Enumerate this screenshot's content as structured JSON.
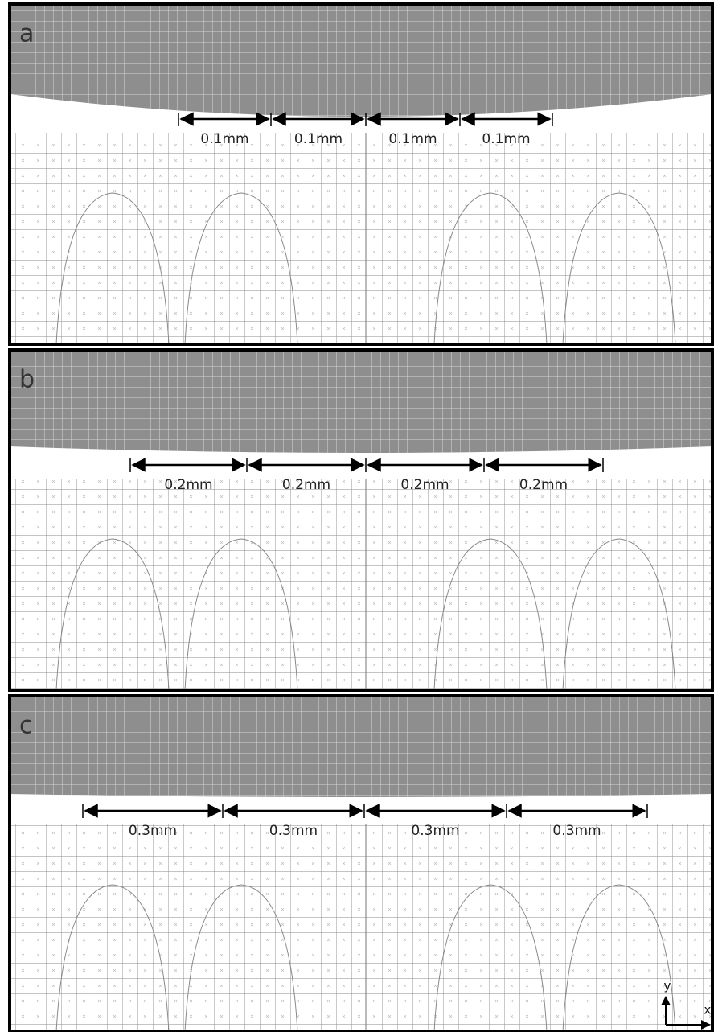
{
  "panels": [
    {
      "label": "a",
      "dimensions": [
        "0.1mm",
        "0.1mm",
        "0.1mm",
        "0.1mm"
      ]
    },
    {
      "label": "b",
      "dimensions": [
        "0.2mm",
        "0.2mm",
        "0.2mm",
        "0.2mm"
      ]
    },
    {
      "label": "c",
      "dimensions": [
        "0.3mm",
        "0.3mm",
        "0.3mm",
        "0.3mm"
      ]
    }
  ],
  "axes": {
    "x": "x",
    "y": "y"
  }
}
